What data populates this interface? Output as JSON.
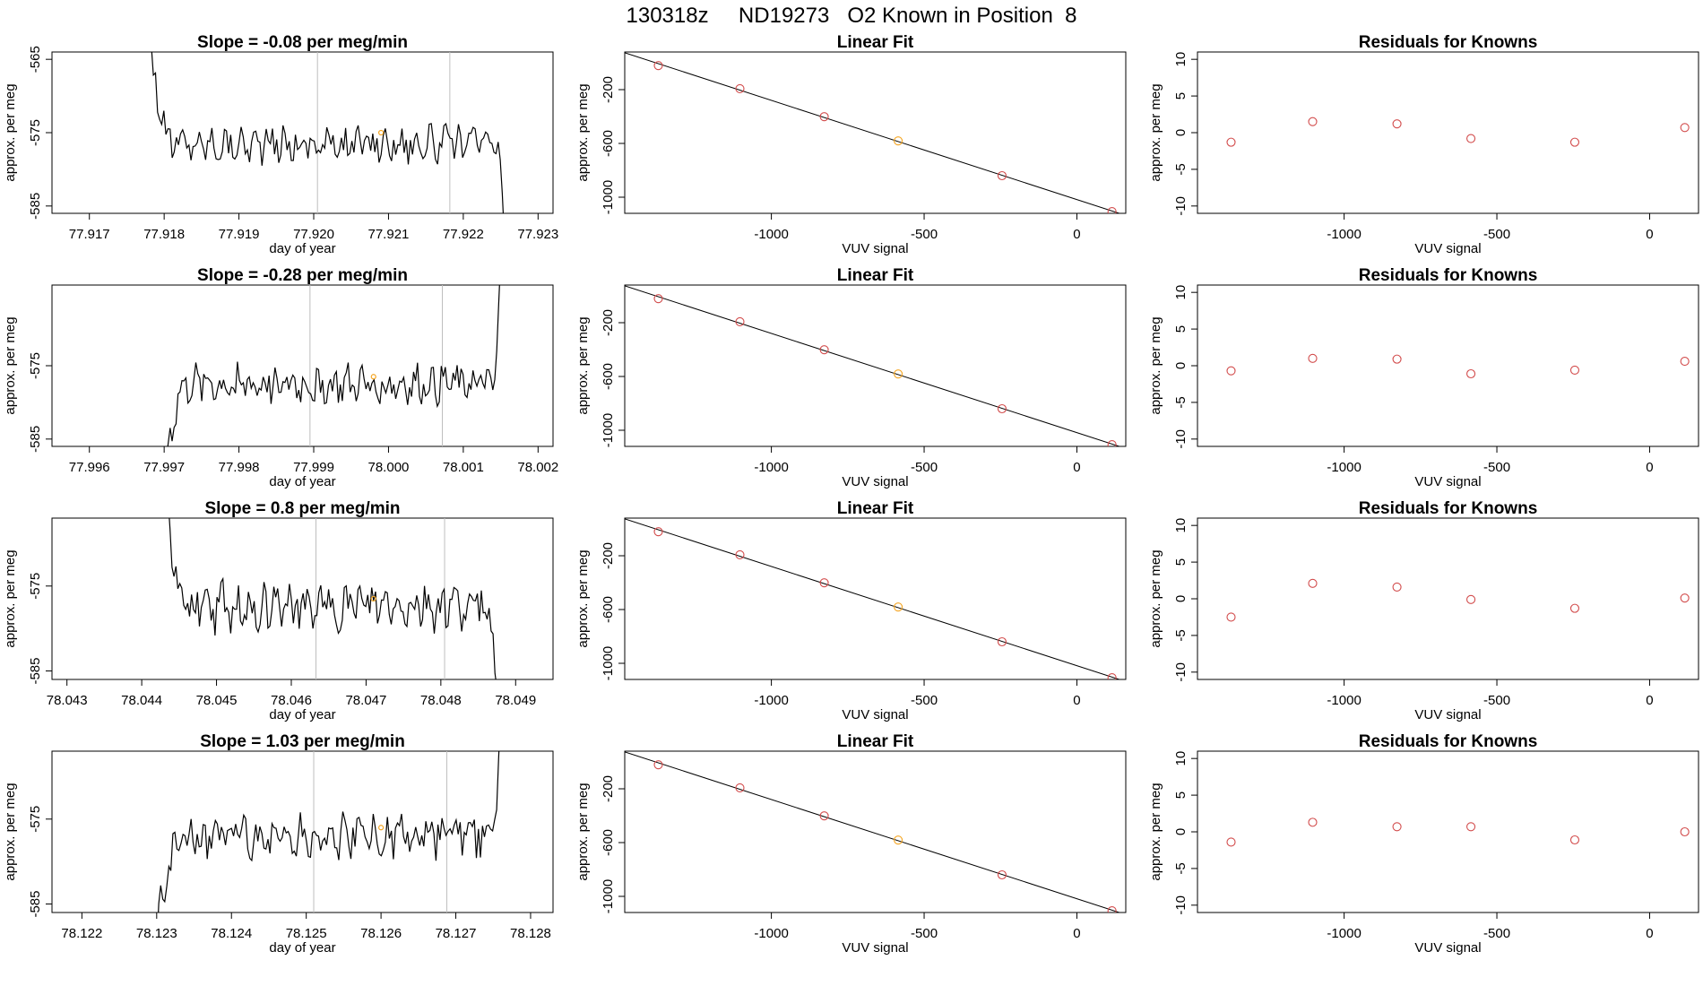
{
  "figure_title": "130318z     ND19273   O2 Known in Position  8",
  "colors": {
    "trace": "#000000",
    "grid_line": "#bebebe",
    "known_point": "#d24b4b",
    "position_point": "#f5a623",
    "axis": "#000000"
  },
  "chart_data": [
    {
      "type": "line",
      "panel": "slope",
      "row": 1,
      "title": "Slope =  -0.08  per meg/min",
      "xlabel": "day of year",
      "ylabel": "approx. per meg",
      "xlim": [
        77.9165,
        77.9232
      ],
      "ylim": [
        -586,
        -564
      ],
      "xticks": [
        "77.917",
        "77.918",
        "77.919",
        "77.920",
        "77.921",
        "77.922",
        "77.923"
      ],
      "yticks": [
        "-565",
        "-575",
        "-585"
      ],
      "vlines": [
        77.92005,
        77.92182
      ],
      "x_start": 77.9178,
      "x_end": 77.92255,
      "base": -576.5,
      "amplitude": 2.0,
      "enter_from": -562,
      "exit_to": -590,
      "marker": {
        "x": 77.9209,
        "y": -575
      }
    },
    {
      "type": "scatter",
      "panel": "fit",
      "row": 1,
      "title": "Linear Fit",
      "xlabel": "VUV signal",
      "ylabel": "approx. per meg",
      "xlim": [
        -1480,
        160
      ],
      "ylim": [
        -1120,
        80
      ],
      "xticks": [
        "-1000",
        "-500",
        "0"
      ],
      "yticks": [
        "-200",
        "-600",
        "-1000"
      ],
      "x": [
        -1370,
        -1103,
        -827,
        -585,
        -245,
        115
      ],
      "y": [
        -21,
        -193,
        -401,
        -581,
        -840,
        -1107
      ],
      "highlight_index": 3
    },
    {
      "type": "scatter",
      "panel": "residuals",
      "row": 1,
      "title": "Residuals for Knowns",
      "xlabel": "VUV signal",
      "ylabel": "approx. per meg",
      "xlim": [
        -1480,
        160
      ],
      "ylim": [
        -11,
        11
      ],
      "xticks": [
        "-1000",
        "-500",
        "0"
      ],
      "yticks": [
        "10",
        "5",
        "0",
        "-5",
        "-10"
      ],
      "x": [
        -1370,
        -1103,
        -827,
        -585,
        -245,
        115
      ],
      "y": [
        -1.3,
        1.5,
        1.2,
        -0.8,
        -1.3,
        0.7
      ]
    },
    {
      "type": "line",
      "panel": "slope",
      "row": 2,
      "title": "Slope =  -0.28  per meg/min",
      "xlabel": "day of year",
      "ylabel": "approx. per meg",
      "xlim": [
        77.9955,
        78.0022
      ],
      "ylim": [
        -586,
        -564
      ],
      "xticks": [
        "77.996",
        "77.997",
        "77.998",
        "77.999",
        "78.000",
        "78.001",
        "78.002"
      ],
      "yticks": [
        "-575",
        "-585"
      ],
      "vlines": [
        77.99895,
        78.00072
      ],
      "x_start": 77.997,
      "x_end": 78.0015,
      "base": -577.5,
      "amplitude": 2.2,
      "enter_from": -590,
      "exit_to": -562,
      "marker": {
        "x": 77.9998,
        "y": -576.5
      }
    },
    {
      "type": "scatter",
      "panel": "fit",
      "row": 2,
      "title": "Linear Fit",
      "xlabel": "VUV signal",
      "ylabel": "approx. per meg",
      "xlim": [
        -1480,
        160
      ],
      "ylim": [
        -1120,
        80
      ],
      "xticks": [
        "-1000",
        "-500",
        "0"
      ],
      "yticks": [
        "-200",
        "-600",
        "-1000"
      ],
      "x": [
        -1370,
        -1103,
        -827,
        -585,
        -245,
        115
      ],
      "y": [
        -21,
        -193,
        -401,
        -581,
        -840,
        -1107
      ],
      "highlight_index": 3
    },
    {
      "type": "scatter",
      "panel": "residuals",
      "row": 2,
      "title": "Residuals for Knowns",
      "xlabel": "VUV signal",
      "ylabel": "approx. per meg",
      "xlim": [
        -1480,
        160
      ],
      "ylim": [
        -11,
        11
      ],
      "xticks": [
        "-1000",
        "-500",
        "0"
      ],
      "yticks": [
        "10",
        "5",
        "0",
        "-5",
        "-10"
      ],
      "x": [
        -1370,
        -1103,
        -827,
        -585,
        -245,
        115
      ],
      "y": [
        -0.7,
        1.0,
        0.9,
        -1.1,
        -0.6,
        0.6
      ]
    },
    {
      "type": "line",
      "panel": "slope",
      "row": 3,
      "title": "Slope =  0.8  per meg/min",
      "xlabel": "day of year",
      "ylabel": "approx. per meg",
      "xlim": [
        78.0428,
        78.0495
      ],
      "ylim": [
        -586,
        -567
      ],
      "xticks": [
        "78.043",
        "78.044",
        "78.045",
        "78.046",
        "78.047",
        "78.048",
        "78.049"
      ],
      "yticks": [
        "-575",
        "-585"
      ],
      "vlines": [
        78.04633,
        78.04805
      ],
      "x_start": 78.0443,
      "x_end": 78.04875,
      "base": -577.5,
      "amplitude": 2.3,
      "enter_from": -562,
      "exit_to": -590,
      "marker": {
        "x": 78.0471,
        "y": -576.5
      }
    },
    {
      "type": "scatter",
      "panel": "fit",
      "row": 3,
      "title": "Linear Fit",
      "xlabel": "VUV signal",
      "ylabel": "approx. per meg",
      "xlim": [
        -1480,
        160
      ],
      "ylim": [
        -1120,
        80
      ],
      "xticks": [
        "-1000",
        "-500",
        "0"
      ],
      "yticks": [
        "-200",
        "-600",
        "-1000"
      ],
      "x": [
        -1370,
        -1103,
        -827,
        -585,
        -245,
        115
      ],
      "y": [
        -21,
        -193,
        -401,
        -581,
        -840,
        -1107
      ],
      "highlight_index": 3
    },
    {
      "type": "scatter",
      "panel": "residuals",
      "row": 3,
      "title": "Residuals for Knowns",
      "xlabel": "VUV signal",
      "ylabel": "approx. per meg",
      "xlim": [
        -1480,
        160
      ],
      "ylim": [
        -11,
        11
      ],
      "xticks": [
        "-1000",
        "-500",
        "0"
      ],
      "yticks": [
        "10",
        "5",
        "0",
        "-5",
        "-10"
      ],
      "x": [
        -1370,
        -1103,
        -827,
        -585,
        -245,
        115
      ],
      "y": [
        -2.5,
        2.1,
        1.6,
        -0.1,
        -1.3,
        0.1
      ]
    },
    {
      "type": "line",
      "panel": "slope",
      "row": 4,
      "title": "Slope =  1.03  per meg/min",
      "xlabel": "day of year",
      "ylabel": "approx. per meg",
      "xlim": [
        78.1216,
        78.1283
      ],
      "ylim": [
        -586,
        -567
      ],
      "xticks": [
        "78.122",
        "78.123",
        "78.124",
        "78.125",
        "78.126",
        "78.127",
        "78.128"
      ],
      "yticks": [
        "-575",
        "-585"
      ],
      "vlines": [
        78.1251,
        78.12688
      ],
      "x_start": 78.123,
      "x_end": 78.1276,
      "base": -577,
      "amplitude": 2.2,
      "enter_from": -590,
      "exit_to": -562,
      "marker": {
        "x": 78.126,
        "y": -576
      }
    },
    {
      "type": "scatter",
      "panel": "fit",
      "row": 4,
      "title": "Linear Fit",
      "xlabel": "VUV signal",
      "ylabel": "approx. per meg",
      "xlim": [
        -1480,
        160
      ],
      "ylim": [
        -1120,
        80
      ],
      "xticks": [
        "-1000",
        "-500",
        "0"
      ],
      "yticks": [
        "-200",
        "-600",
        "-1000"
      ],
      "x": [
        -1370,
        -1103,
        -827,
        -585,
        -245,
        115
      ],
      "y": [
        -21,
        -193,
        -401,
        -581,
        -840,
        -1107
      ],
      "highlight_index": 3
    },
    {
      "type": "scatter",
      "panel": "residuals",
      "row": 4,
      "title": "Residuals for Knowns",
      "xlabel": "VUV signal",
      "ylabel": "approx. per meg",
      "xlim": [
        -1480,
        160
      ],
      "ylim": [
        -11,
        11
      ],
      "xticks": [
        "-1000",
        "-500",
        "0"
      ],
      "yticks": [
        "10",
        "5",
        "0",
        "-5",
        "-10"
      ],
      "x": [
        -1370,
        -1103,
        -827,
        -585,
        -245,
        115
      ],
      "y": [
        -1.4,
        1.3,
        0.7,
        0.7,
        -1.1,
        0.0
      ]
    }
  ]
}
